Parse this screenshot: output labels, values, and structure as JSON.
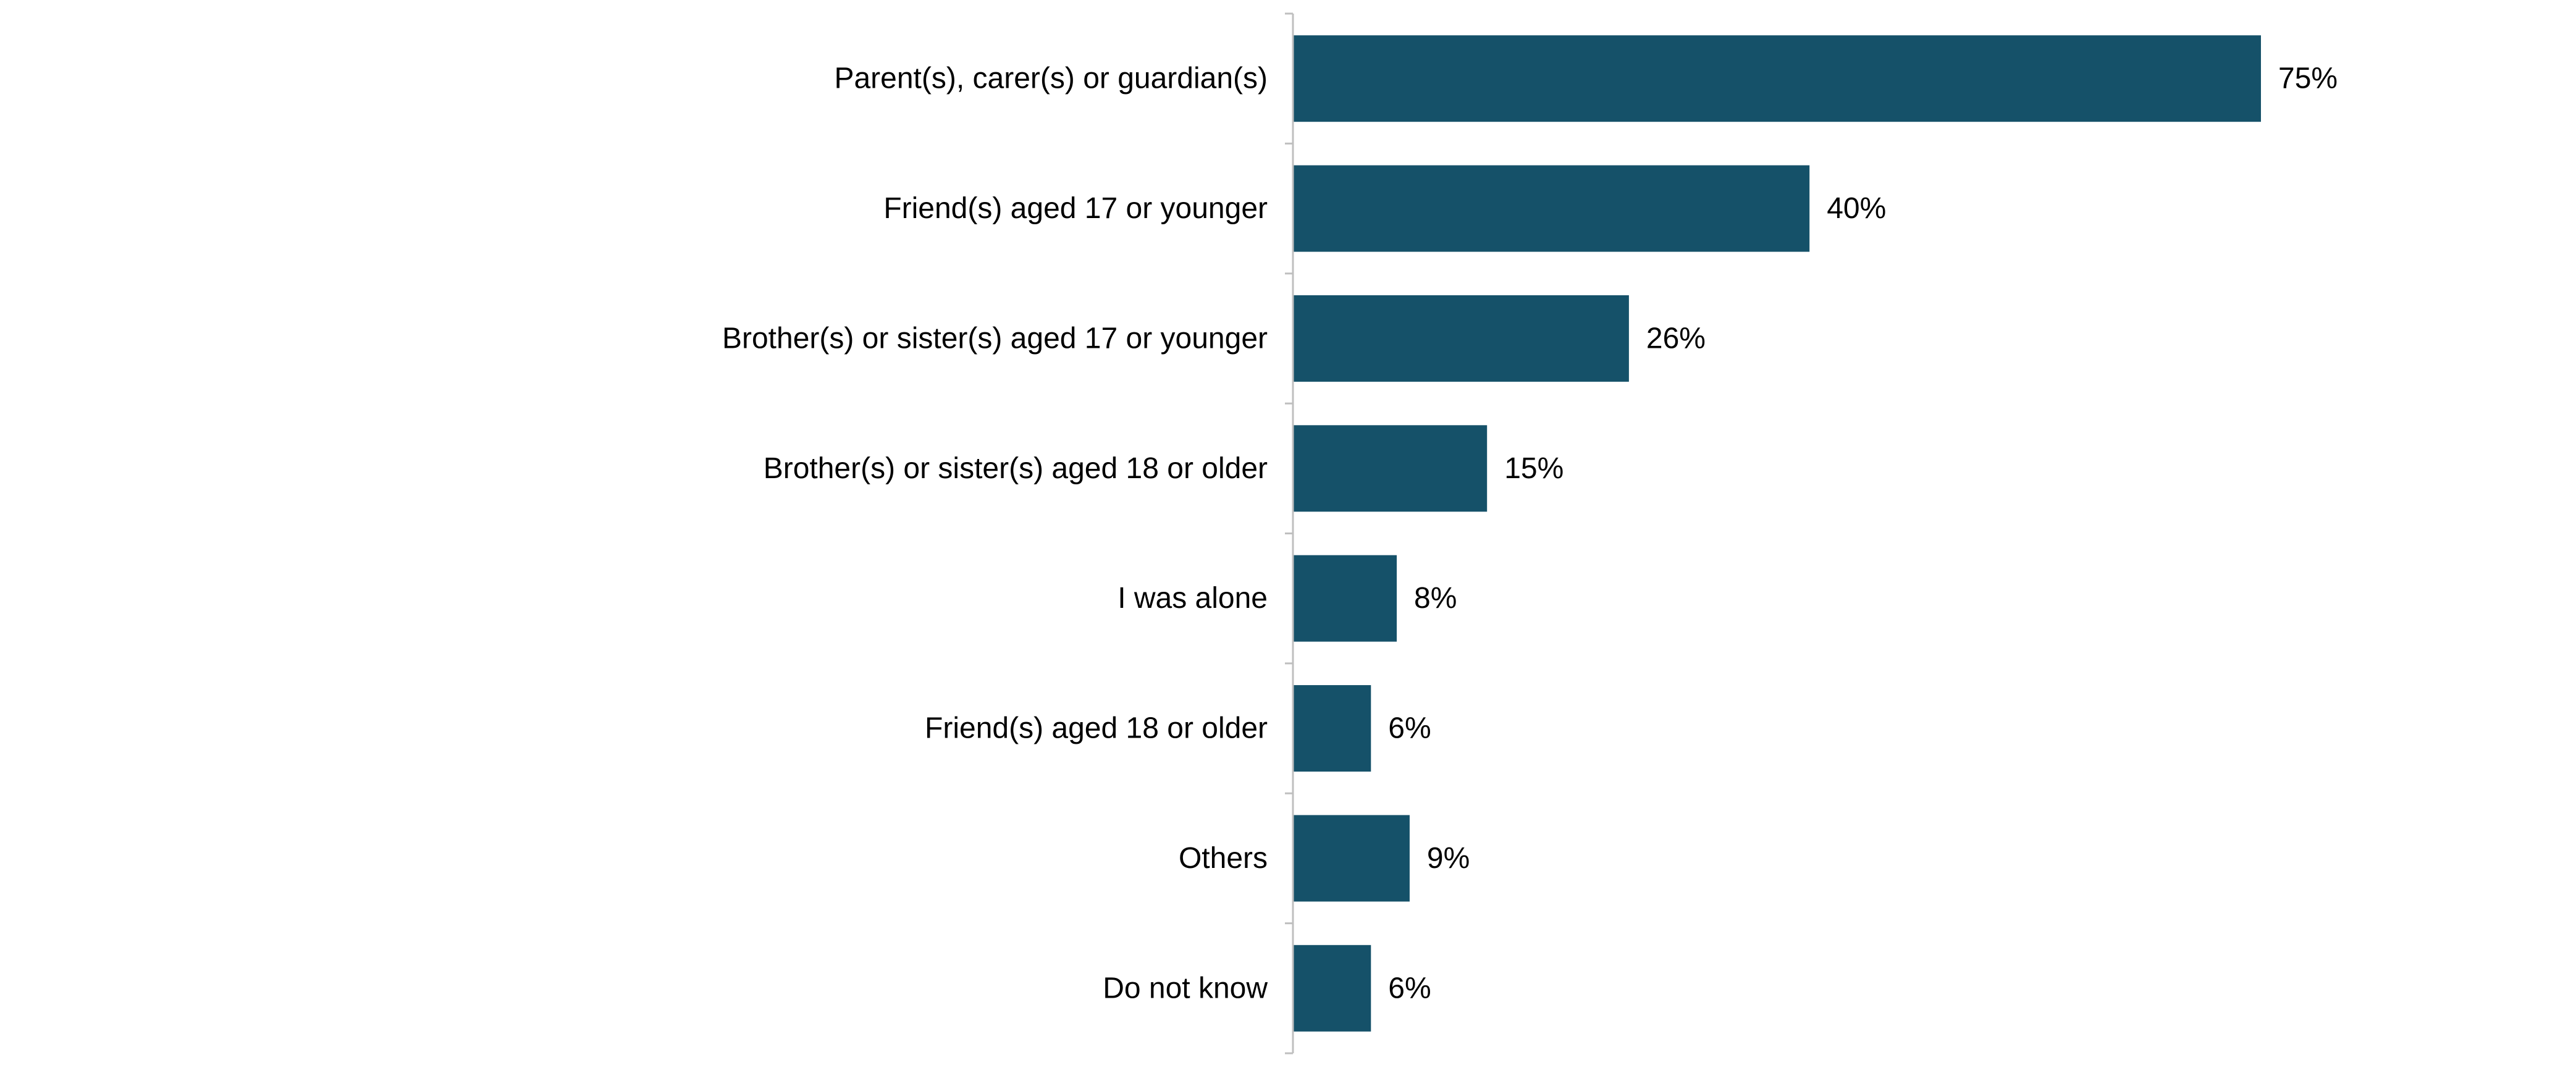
{
  "chart_data": {
    "type": "bar",
    "orientation": "horizontal",
    "title": "",
    "xlabel": "",
    "ylabel": "",
    "xlim": [
      0,
      100
    ],
    "grid": false,
    "legend": "none",
    "bar_color": "#155169",
    "axis_color": "#bfbfbf",
    "label_color": "#000000",
    "value_suffix": "%",
    "categories": [
      "Parent(s), carer(s) or guardian(s)",
      "Friend(s) aged 17 or younger",
      "Brother(s) or sister(s) aged 17 or younger",
      "Brother(s) or sister(s) aged 18 or older",
      "I was alone",
      "Friend(s) aged 18 or older",
      "Others",
      "Do not know"
    ],
    "values": [
      75,
      40,
      26,
      15,
      8,
      6,
      9,
      6
    ],
    "data_labels": [
      "75%",
      "40%",
      "26%",
      "15%",
      "8%",
      "6%",
      "9%",
      "6%"
    ]
  }
}
